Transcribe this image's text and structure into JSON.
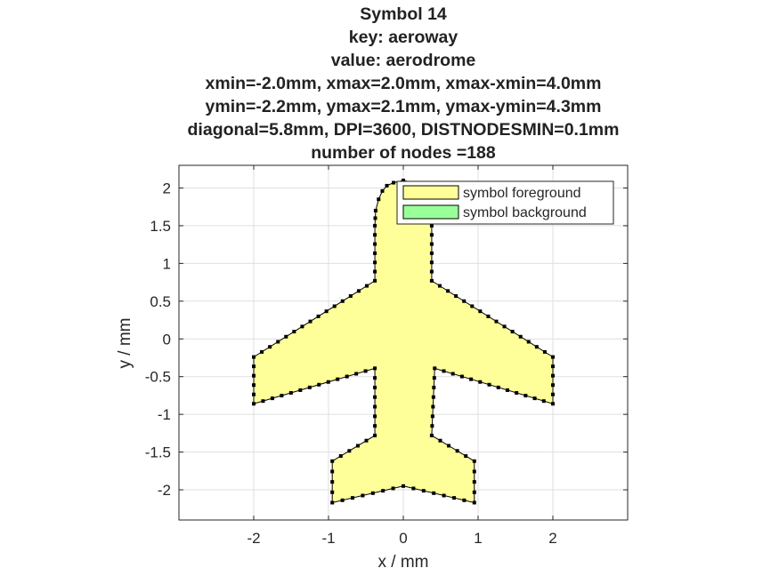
{
  "chart_data": {
    "type": "area",
    "title_lines": [
      "Symbol 14",
      "key: aeroway",
      "value: aerodrome",
      "xmin=-2.0mm, xmax=2.0mm, xmax-xmin=4.0mm",
      "ymin=-2.2mm, ymax=2.1mm, ymax-ymin=4.3mm",
      "diagonal=5.8mm, DPI=3600, DISTNODESMIN=0.1mm",
      "number of nodes =188"
    ],
    "xlabel": "x / mm",
    "ylabel": "y / mm",
    "xlim": [
      -3.0,
      3.0
    ],
    "ylim": [
      -2.4,
      2.3
    ],
    "xticks": [
      -2,
      -1,
      0,
      1,
      2
    ],
    "yticks": [
      2,
      1.5,
      1,
      0.5,
      0,
      -0.5,
      -1,
      -1.5,
      -2
    ],
    "xtick_labels": [
      "-2",
      "-1",
      "0",
      "1",
      "2"
    ],
    "ytick_labels": [
      "2",
      "1.5",
      "1",
      "0.5",
      "0",
      "-0.5",
      "-1",
      "-1.5",
      "-2"
    ],
    "grid": true,
    "legend_position": "top-right",
    "series": [
      {
        "name": "symbol foreground",
        "color": "#ffff99",
        "edge_color": "#000000",
        "points": [
          [
            -0.38,
            0.77
          ],
          [
            -0.38,
            1.5
          ],
          [
            -0.37,
            1.7
          ],
          [
            -0.33,
            1.85
          ],
          [
            -0.28,
            1.96
          ],
          [
            -0.22,
            2.03
          ],
          [
            -0.13,
            2.07
          ],
          [
            0.0,
            2.1
          ],
          [
            0.13,
            2.07
          ],
          [
            0.22,
            2.03
          ],
          [
            0.28,
            1.96
          ],
          [
            0.33,
            1.85
          ],
          [
            0.37,
            1.7
          ],
          [
            0.38,
            1.5
          ],
          [
            0.38,
            0.77
          ],
          [
            2.0,
            -0.24
          ],
          [
            2.0,
            -0.86
          ],
          [
            0.42,
            -0.39
          ],
          [
            0.38,
            -1.28
          ],
          [
            0.95,
            -1.62
          ],
          [
            0.95,
            -2.17
          ],
          [
            0.0,
            -1.95
          ],
          [
            -0.95,
            -2.17
          ],
          [
            -0.95,
            -1.62
          ],
          [
            -0.38,
            -1.28
          ],
          [
            -0.38,
            -0.39
          ],
          [
            -2.0,
            -0.86
          ],
          [
            -2.0,
            -0.24
          ]
        ]
      },
      {
        "name": "symbol background",
        "color": "#99ff99",
        "edge_color": "#000000",
        "points": []
      }
    ]
  }
}
